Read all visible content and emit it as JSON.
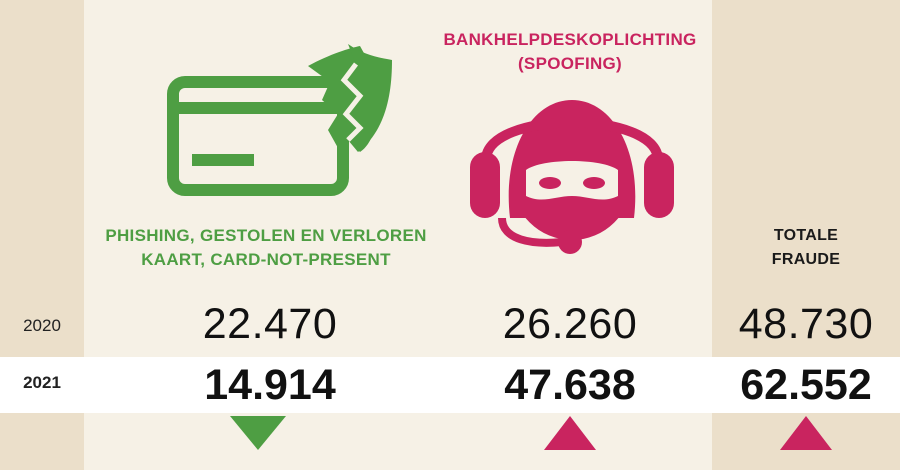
{
  "categories": [
    {
      "label_lines": [
        "PHISHING, GESTOLEN EN VERLOREN",
        "KAART, CARD-NOT-PRESENT"
      ],
      "icon": "broken-card-icon",
      "value_2020": "22.470",
      "value_2021": "14.914",
      "trend": "down",
      "color": "#4e9e43"
    },
    {
      "label_lines": [
        "BANKHELPDESKOPLICHTING",
        "(SPOOFING)"
      ],
      "icon": "masked-helpdesk-icon",
      "value_2020": "26.260",
      "value_2021": "47.638",
      "trend": "up",
      "color": "#c9245f"
    },
    {
      "label_lines": [
        "TOTALE",
        "FRAUDE"
      ],
      "value_2020": "48.730",
      "value_2021": "62.552",
      "trend": "up",
      "color": "#c9245f"
    }
  ],
  "years": [
    "2020",
    "2021"
  ]
}
